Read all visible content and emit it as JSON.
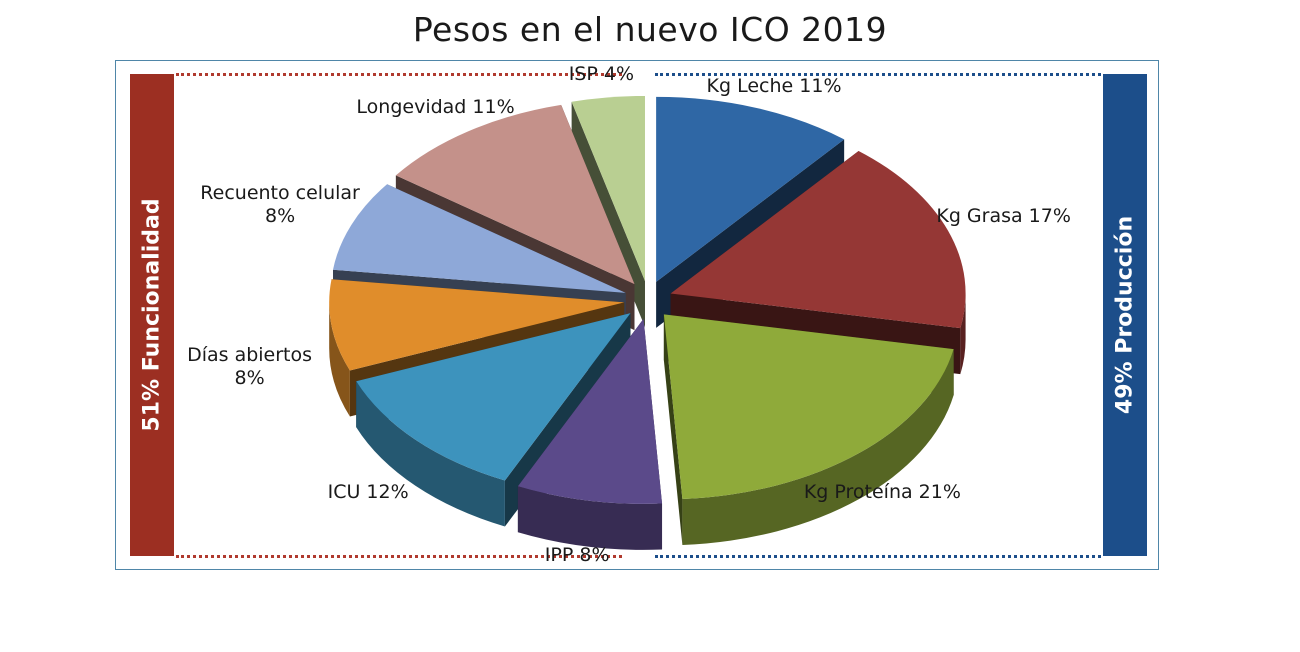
{
  "chart_data": {
    "type": "pie",
    "title": "Pesos en el nuevo ICO 2019",
    "slices": [
      {
        "label": "Kg Leche 11%",
        "lines": [
          "Kg Leche 11%"
        ],
        "value": 11,
        "color": "#2f67a5"
      },
      {
        "label": "Kg Grasa 17%",
        "lines": [
          "Kg Grasa 17%"
        ],
        "value": 17,
        "color": "#953735"
      },
      {
        "label": "Kg Proteína 21%",
        "lines": [
          "Kg Proteína 21%"
        ],
        "value": 21,
        "color": "#8faa3a"
      },
      {
        "label": "IPP 8%",
        "lines": [
          "IPP 8%"
        ],
        "value": 8,
        "color": "#5b4a8a"
      },
      {
        "label": "ICU 12%",
        "lines": [
          "ICU 12%"
        ],
        "value": 12,
        "color": "#3d93bd"
      },
      {
        "label": "Días abiertos 8%",
        "lines": [
          "Días abiertos",
          "8%"
        ],
        "value": 8,
        "color": "#e08d2b"
      },
      {
        "label": "Recuento celular 8%",
        "lines": [
          "Recuento celular",
          "8%"
        ],
        "value": 8,
        "color": "#8ea8d8"
      },
      {
        "label": "Longevidad 11%",
        "lines": [
          "Longevidad 11%"
        ],
        "value": 11,
        "color": "#c4918a"
      },
      {
        "label": "ISP 4%",
        "lines": [
          "ISP 4%"
        ],
        "value": 4,
        "color": "#b9cf92"
      }
    ],
    "groups": [
      {
        "label": "51% Funcionalidad",
        "color": "#9c2f22",
        "dots": "#b03a2e"
      },
      {
        "label": "49% Producción",
        "color": "#1c4e8a",
        "dots": "#1c4e8a"
      }
    ]
  }
}
